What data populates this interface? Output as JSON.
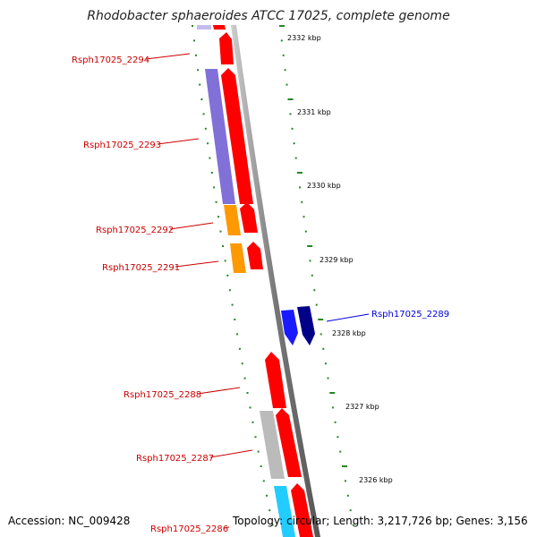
{
  "title": "Rhodobacter sphaeroides ATCC 17025, complete genome",
  "footer": {
    "accession": "Accession: NC_009428",
    "topology": "Topology: circular; Length: 3,217,726 bp; Genes: 3,156"
  },
  "colors": {
    "backbone": "#888888",
    "tick_dots": "#228822",
    "forward_gene": "#ff0000",
    "label_red": "#cc0000",
    "label_blue": "#0000dd"
  },
  "ticks": [
    {
      "label": "2332 kbp"
    },
    {
      "label": "2331 kbp"
    },
    {
      "label": "2330 kbp"
    },
    {
      "label": "2329 kbp"
    },
    {
      "label": "2328 kbp"
    },
    {
      "label": "2327 kbp"
    },
    {
      "label": "2326 kbp"
    }
  ],
  "gene_labels": [
    {
      "text": "Rsph17025_2294",
      "color": "red"
    },
    {
      "text": "Rsph17025_2293",
      "color": "red"
    },
    {
      "text": "Rsph17025_2292",
      "color": "red"
    },
    {
      "text": "Rsph17025_2291",
      "color": "red"
    },
    {
      "text": "Rsph17025_2289",
      "color": "blue"
    },
    {
      "text": "Rsph17025_2288",
      "color": "red"
    },
    {
      "text": "Rsph17025_2287",
      "color": "red"
    },
    {
      "text": "Rsph17025_2286",
      "color": "red"
    }
  ],
  "features": [
    {
      "name": "feature-top-purple",
      "color": "#8877dd"
    },
    {
      "name": "feature-top-red",
      "color": "#ff0000"
    },
    {
      "name": "gene-2294-arrow",
      "color": "#ff0000"
    },
    {
      "name": "gene-2293-purple-bar",
      "color": "#8070d8"
    },
    {
      "name": "gene-2293-arrow",
      "color": "#ff0000"
    },
    {
      "name": "gene-2292-orange-bar",
      "color": "#ff9900"
    },
    {
      "name": "gene-2292-arrow",
      "color": "#ff0000"
    },
    {
      "name": "gene-2291-orange-bar",
      "color": "#ff9900"
    },
    {
      "name": "gene-2291-arrow",
      "color": "#ff0000"
    },
    {
      "name": "gene-2289-blue-arrow",
      "color": "#1a1aff"
    },
    {
      "name": "gene-2289-navy-arrow",
      "color": "#000088"
    },
    {
      "name": "gene-2288-arrow",
      "color": "#ff0000"
    },
    {
      "name": "gene-2287-gray-bar",
      "color": "#bbbbbb"
    },
    {
      "name": "gene-2287-arrow",
      "color": "#ff0000"
    },
    {
      "name": "gene-2286-cyan-bar",
      "color": "#22ccff"
    },
    {
      "name": "gene-2286-arrow",
      "color": "#ff0000"
    }
  ]
}
